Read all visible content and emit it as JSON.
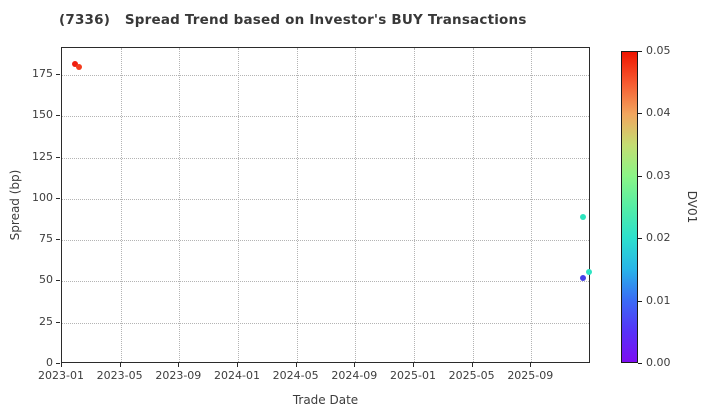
{
  "colors": {
    "background": "#ffffff",
    "spine": "#2b2b2b",
    "grid": "#b4b4b4",
    "text": "#3d3d3d",
    "title": "#383838"
  },
  "chart_data": {
    "type": "scatter",
    "title": "(7336)   Spread Trend based on Investor's BUY Transactions",
    "xlabel": "Trade Date",
    "ylabel": "Spread (bp)",
    "grid": "dotted",
    "x_axis": {
      "tick_labels": [
        "2023-01",
        "2023-05",
        "2023-09",
        "2024-01",
        "2024-05",
        "2024-09",
        "2025-01",
        "2025-05",
        "2025-09"
      ],
      "tick_months": [
        0,
        4,
        8,
        12,
        16,
        20,
        24,
        28,
        32
      ],
      "range_months": [
        0,
        36.07
      ],
      "range_dates": [
        "2023-01-01",
        "2026-01-03"
      ]
    },
    "y_axis": {
      "ticks": [
        0,
        25,
        50,
        75,
        100,
        125,
        150,
        175
      ],
      "range": [
        0,
        191.4
      ]
    },
    "points": [
      {
        "date": "2023-01-28",
        "spread_bp": 182,
        "dv01": 0.05,
        "color": "#f01d10"
      },
      {
        "date": "2023-02-06",
        "spread_bp": 180,
        "dv01": 0.048,
        "color": "#f43c1e"
      },
      {
        "date": "2025-12-16",
        "spread_bp": 89,
        "dv01": 0.022,
        "color": "#2ce4bd"
      },
      {
        "date": "2025-12-29",
        "spread_bp": 56,
        "dv01": 0.021,
        "color": "#2de4c3"
      },
      {
        "date": "2025-12-18",
        "spread_bp": 52,
        "dv01": 0.006,
        "color": "#4540e8"
      }
    ],
    "colorbar": {
      "label": "DV01",
      "tick_labels": [
        "0.00",
        "0.01",
        "0.02",
        "0.03",
        "0.04",
        "0.05"
      ],
      "range": [
        0,
        0.05
      ],
      "gradient": [
        {
          "t": 0.0,
          "c": "#7d0df2"
        },
        {
          "t": 0.1,
          "c": "#5633f8"
        },
        {
          "t": 0.2,
          "c": "#3a6cf5"
        },
        {
          "t": 0.3,
          "c": "#28b5e8"
        },
        {
          "t": 0.4,
          "c": "#2ce0cd"
        },
        {
          "t": 0.5,
          "c": "#55eda5"
        },
        {
          "t": 0.6,
          "c": "#8bf586"
        },
        {
          "t": 0.7,
          "c": "#c4dd72"
        },
        {
          "t": 0.8,
          "c": "#f2a55e"
        },
        {
          "t": 0.9,
          "c": "#f65a30"
        },
        {
          "t": 1.0,
          "c": "#ee1500"
        }
      ]
    }
  }
}
